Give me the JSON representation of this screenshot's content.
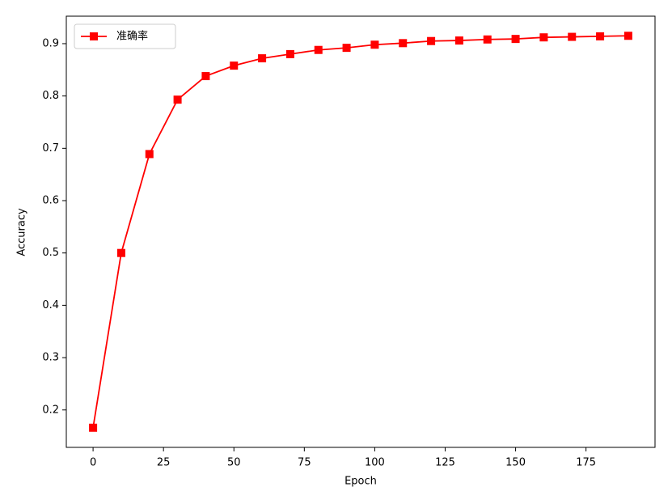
{
  "chart_data": {
    "type": "line",
    "x": [
      0,
      10,
      20,
      30,
      40,
      50,
      60,
      70,
      80,
      90,
      100,
      110,
      120,
      130,
      140,
      150,
      160,
      170,
      180,
      190
    ],
    "series": [
      {
        "name": "准确率",
        "color": "#ff0000",
        "marker": "square",
        "values": [
          0.166,
          0.5,
          0.689,
          0.793,
          0.838,
          0.858,
          0.872,
          0.88,
          0.888,
          0.892,
          0.898,
          0.901,
          0.905,
          0.906,
          0.908,
          0.909,
          0.912,
          0.913,
          0.914,
          0.915
        ]
      }
    ],
    "xlabel": "Epoch",
    "ylabel": "Accuracy",
    "xlim": [
      -9.5,
      199.5
    ],
    "xticks": [
      0,
      25,
      50,
      75,
      100,
      125,
      150,
      175
    ],
    "ylim": [
      0.1285,
      0.9525
    ],
    "yticks": [
      0.2,
      0.3,
      0.4,
      0.5,
      0.6,
      0.7,
      0.8,
      0.9
    ],
    "legend": "upper left",
    "grid": false
  }
}
